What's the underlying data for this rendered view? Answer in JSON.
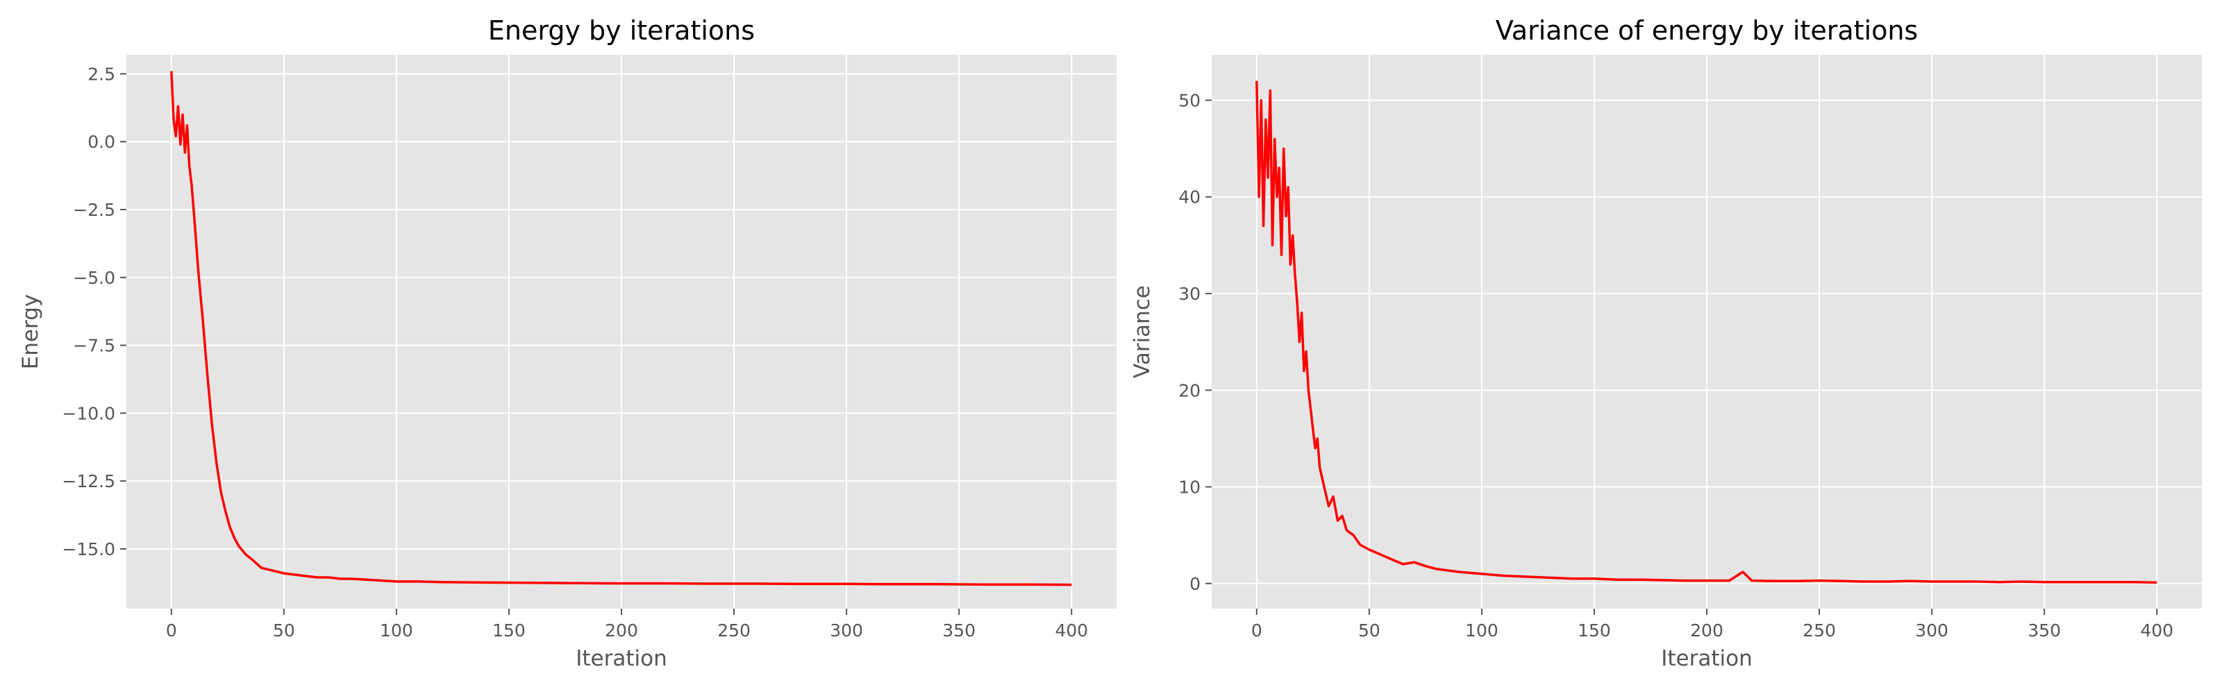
{
  "chart_data": [
    {
      "type": "line",
      "title": "Energy by iterations",
      "xlabel": "Iteration",
      "ylabel": "Energy",
      "xlim": [
        -20,
        420
      ],
      "ylim": [
        -17.2,
        3.2
      ],
      "xticks": [
        0,
        50,
        100,
        150,
        200,
        250,
        300,
        350,
        400
      ],
      "xtick_labels": [
        "0",
        "50",
        "100",
        "150",
        "200",
        "250",
        "300",
        "350",
        "400"
      ],
      "yticks": [
        2.5,
        0.0,
        -2.5,
        -5.0,
        -7.5,
        -10.0,
        -12.5,
        -15.0
      ],
      "ytick_labels": [
        "2.5",
        "0.0",
        "−2.5",
        "−5.0",
        "−7.5",
        "−10.0",
        "−12.5",
        "−15.0"
      ],
      "grid": true,
      "series": [
        {
          "color": "#ff0000",
          "x": [
            0,
            1,
            2,
            3,
            4,
            5,
            6,
            7,
            8,
            9,
            10,
            12,
            14,
            16,
            18,
            20,
            22,
            24,
            26,
            28,
            30,
            33,
            36,
            40,
            45,
            50,
            55,
            60,
            65,
            70,
            75,
            80,
            90,
            100,
            110,
            120,
            140,
            160,
            180,
            200,
            220,
            240,
            260,
            280,
            300,
            320,
            340,
            360,
            380,
            400
          ],
          "y": [
            2.6,
            0.8,
            0.2,
            1.3,
            -0.1,
            1.0,
            -0.4,
            0.6,
            -0.9,
            -1.6,
            -2.6,
            -4.8,
            -6.6,
            -8.6,
            -10.4,
            -11.8,
            -12.9,
            -13.6,
            -14.2,
            -14.6,
            -14.9,
            -15.2,
            -15.4,
            -15.7,
            -15.8,
            -15.9,
            -15.95,
            -16.0,
            -16.05,
            -16.05,
            -16.1,
            -16.1,
            -16.15,
            -16.2,
            -16.2,
            -16.22,
            -16.24,
            -16.25,
            -16.26,
            -16.27,
            -16.27,
            -16.28,
            -16.28,
            -16.29,
            -16.29,
            -16.3,
            -16.3,
            -16.31,
            -16.31,
            -16.32
          ]
        }
      ]
    },
    {
      "type": "line",
      "title": "Variance of energy by iterations",
      "xlabel": "Iteration",
      "ylabel": "Variance",
      "xlim": [
        -20,
        420
      ],
      "ylim": [
        -2.6,
        54.7
      ],
      "xticks": [
        0,
        50,
        100,
        150,
        200,
        250,
        300,
        350,
        400
      ],
      "xtick_labels": [
        "0",
        "50",
        "100",
        "150",
        "200",
        "250",
        "300",
        "350",
        "400"
      ],
      "yticks": [
        0,
        10,
        20,
        30,
        40,
        50
      ],
      "ytick_labels": [
        "0",
        "10",
        "20",
        "30",
        "40",
        "50"
      ],
      "grid": true,
      "series": [
        {
          "color": "#ff0000",
          "x": [
            0,
            1,
            2,
            3,
            4,
            5,
            6,
            7,
            8,
            9,
            10,
            11,
            12,
            13,
            14,
            15,
            16,
            17,
            18,
            19,
            20,
            21,
            22,
            23,
            24,
            25,
            26,
            27,
            28,
            29,
            30,
            32,
            34,
            36,
            38,
            40,
            43,
            46,
            50,
            55,
            60,
            65,
            70,
            75,
            80,
            90,
            100,
            110,
            120,
            130,
            140,
            150,
            160,
            170,
            180,
            190,
            200,
            210,
            216,
            220,
            230,
            240,
            250,
            260,
            270,
            280,
            290,
            300,
            310,
            320,
            330,
            340,
            350,
            360,
            370,
            380,
            390,
            400
          ],
          "y": [
            52,
            40,
            50,
            37,
            48,
            42,
            51,
            35,
            46,
            40,
            43,
            34,
            45,
            38,
            41,
            33,
            36,
            32,
            29,
            25,
            28,
            22,
            24,
            20,
            18,
            16,
            14,
            15,
            12,
            11,
            10,
            8,
            9,
            6.5,
            7,
            5.5,
            5,
            4,
            3.5,
            3,
            2.5,
            2,
            2.2,
            1.8,
            1.5,
            1.2,
            1.0,
            0.8,
            0.7,
            0.6,
            0.5,
            0.5,
            0.4,
            0.4,
            0.35,
            0.3,
            0.3,
            0.3,
            1.2,
            0.3,
            0.25,
            0.25,
            0.3,
            0.25,
            0.2,
            0.2,
            0.25,
            0.2,
            0.2,
            0.2,
            0.15,
            0.2,
            0.15,
            0.15,
            0.15,
            0.15,
            0.15,
            0.1
          ]
        }
      ]
    }
  ]
}
